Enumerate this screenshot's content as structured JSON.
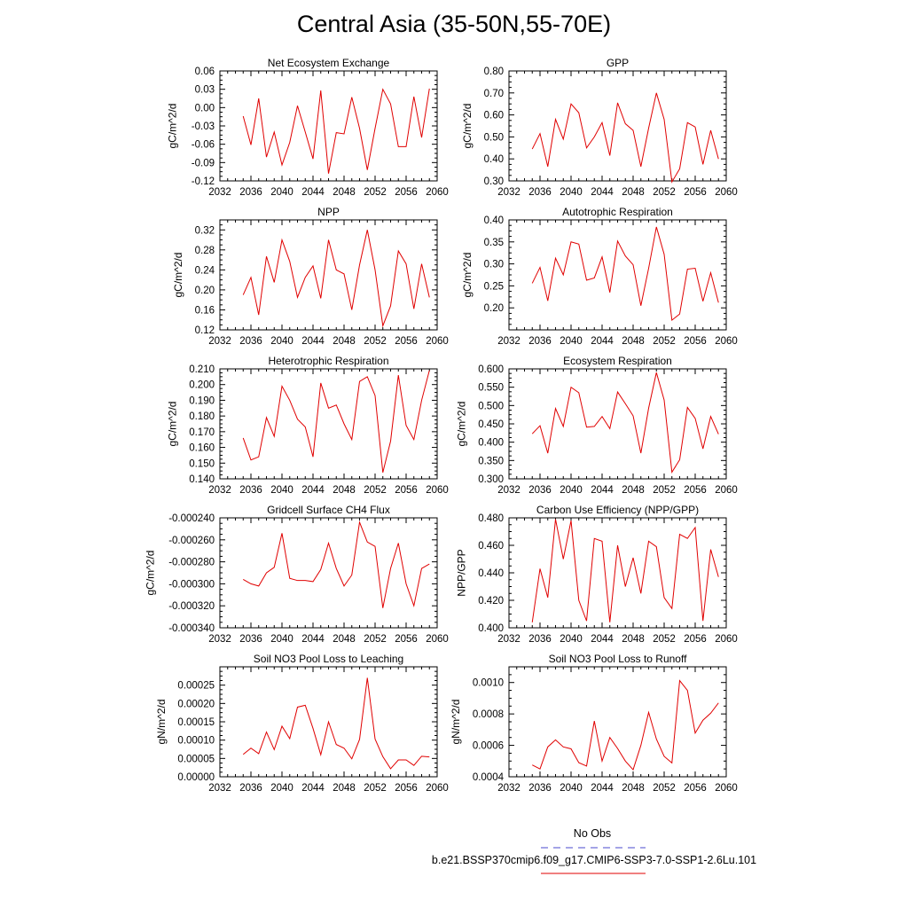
{
  "title": "Central Asia (35-50N,55-70E)",
  "legend": {
    "obs_label": "No Obs",
    "obs_color": "#4a4acd",
    "case_label": "b.e21.BSSP370cmip6.f09_g17.CMIP6-SSP3-7.0-SSP1-2.6Lu.101",
    "case_color": "#e00000"
  },
  "line_color": "#e00000",
  "chart_data": [
    {
      "type": "line",
      "title": "Net Ecosystem Exchange",
      "ylabel": "gC/m^2/d",
      "xlim": [
        2032,
        2060
      ],
      "xticks": [
        2032,
        2036,
        2040,
        2044,
        2048,
        2052,
        2056,
        2060
      ],
      "xtick_labels": [
        "2032",
        "2036",
        "2040",
        "2044",
        "2048",
        "2052",
        "2056",
        "2060"
      ],
      "ylim": [
        -0.12,
        0.06
      ],
      "yticks": [
        -0.12,
        -0.09,
        -0.06,
        -0.03,
        0.0,
        0.03,
        0.06
      ],
      "ytick_labels": [
        "-0.12",
        "-0.09",
        "-0.06",
        "-0.03",
        "0.00",
        "0.03",
        "0.06"
      ],
      "x": [
        2035,
        2036,
        2037,
        2038,
        2039,
        2040,
        2041,
        2042,
        2043,
        2044,
        2045,
        2046,
        2047,
        2048,
        2049,
        2050,
        2051,
        2052,
        2053,
        2054,
        2055,
        2056,
        2057,
        2058,
        2059
      ],
      "values": [
        -0.014,
        -0.061,
        0.015,
        -0.081,
        -0.04,
        -0.094,
        -0.057,
        0.003,
        -0.04,
        -0.084,
        0.028,
        -0.108,
        -0.041,
        -0.043,
        0.017,
        -0.034,
        -0.102,
        -0.034,
        0.03,
        0.006,
        -0.064,
        -0.064,
        0.018,
        -0.049,
        0.031
      ]
    },
    {
      "type": "line",
      "title": "GPP",
      "ylabel": "gC/m^2/d",
      "xlim": [
        2032,
        2060
      ],
      "xticks": [
        2032,
        2036,
        2040,
        2044,
        2048,
        2052,
        2056,
        2060
      ],
      "xtick_labels": [
        "2032",
        "2036",
        "2040",
        "2044",
        "2048",
        "2052",
        "2056",
        "2060"
      ],
      "ylim": [
        0.3,
        0.8
      ],
      "yticks": [
        0.3,
        0.4,
        0.5,
        0.6,
        0.7,
        0.8
      ],
      "ytick_labels": [
        "0.30",
        "0.40",
        "0.50",
        "0.60",
        "0.70",
        "0.80"
      ],
      "x": [
        2035,
        2036,
        2037,
        2038,
        2039,
        2040,
        2041,
        2042,
        2043,
        2044,
        2045,
        2046,
        2047,
        2048,
        2049,
        2050,
        2051,
        2052,
        2053,
        2054,
        2055,
        2056,
        2057,
        2058,
        2059
      ],
      "values": [
        0.445,
        0.515,
        0.365,
        0.58,
        0.49,
        0.65,
        0.61,
        0.45,
        0.5,
        0.565,
        0.415,
        0.655,
        0.56,
        0.53,
        0.365,
        0.54,
        0.7,
        0.58,
        0.295,
        0.355,
        0.565,
        0.545,
        0.375,
        0.53,
        0.4
      ]
    },
    {
      "type": "line",
      "title": "NPP",
      "ylabel": "gC/m^2/d",
      "xlim": [
        2032,
        2060
      ],
      "xticks": [
        2032,
        2036,
        2040,
        2044,
        2048,
        2052,
        2056,
        2060
      ],
      "xtick_labels": [
        "2032",
        "2036",
        "2040",
        "2044",
        "2048",
        "2052",
        "2056",
        "2060"
      ],
      "ylim": [
        0.12,
        0.34
      ],
      "yticks": [
        0.12,
        0.16,
        0.2,
        0.24,
        0.28,
        0.32
      ],
      "ytick_labels": [
        "0.12",
        "0.16",
        "0.20",
        "0.24",
        "0.28",
        "0.32"
      ],
      "x": [
        2035,
        2036,
        2037,
        2038,
        2039,
        2040,
        2041,
        2042,
        2043,
        2044,
        2045,
        2046,
        2047,
        2048,
        2049,
        2050,
        2051,
        2052,
        2053,
        2054,
        2055,
        2056,
        2057,
        2058,
        2059
      ],
      "values": [
        0.19,
        0.225,
        0.15,
        0.267,
        0.215,
        0.3,
        0.257,
        0.185,
        0.225,
        0.248,
        0.183,
        0.3,
        0.24,
        0.232,
        0.16,
        0.25,
        0.32,
        0.24,
        0.128,
        0.168,
        0.278,
        0.252,
        0.162,
        0.252,
        0.185
      ]
    },
    {
      "type": "line",
      "title": "Autotrophic Respiration",
      "ylabel": "gC/m^2/d",
      "xlim": [
        2032,
        2060
      ],
      "xticks": [
        2032,
        2036,
        2040,
        2044,
        2048,
        2052,
        2056,
        2060
      ],
      "xtick_labels": [
        "2032",
        "2036",
        "2040",
        "2044",
        "2048",
        "2052",
        "2056",
        "2060"
      ],
      "ylim": [
        0.15,
        0.4
      ],
      "yticks": [
        0.2,
        0.25,
        0.3,
        0.35,
        0.4
      ],
      "ytick_labels": [
        "0.20",
        "0.25",
        "0.30",
        "0.35",
        "0.40"
      ],
      "x": [
        2035,
        2036,
        2037,
        2038,
        2039,
        2040,
        2041,
        2042,
        2043,
        2044,
        2045,
        2046,
        2047,
        2048,
        2049,
        2050,
        2051,
        2052,
        2053,
        2054,
        2055,
        2056,
        2057,
        2058,
        2059
      ],
      "values": [
        0.256,
        0.292,
        0.216,
        0.313,
        0.275,
        0.35,
        0.345,
        0.263,
        0.268,
        0.316,
        0.235,
        0.352,
        0.318,
        0.298,
        0.205,
        0.29,
        0.384,
        0.322,
        0.172,
        0.186,
        0.288,
        0.29,
        0.215,
        0.28,
        0.212
      ]
    },
    {
      "type": "line",
      "title": "Heterotrophic Respiration",
      "ylabel": "gC/m^2/d",
      "xlim": [
        2032,
        2060
      ],
      "xticks": [
        2032,
        2036,
        2040,
        2044,
        2048,
        2052,
        2056,
        2060
      ],
      "xtick_labels": [
        "2032",
        "2036",
        "2040",
        "2044",
        "2048",
        "2052",
        "2056",
        "2060"
      ],
      "ylim": [
        0.14,
        0.21
      ],
      "yticks": [
        0.14,
        0.15,
        0.16,
        0.17,
        0.18,
        0.19,
        0.2,
        0.21
      ],
      "ytick_labels": [
        "0.140",
        "0.150",
        "0.160",
        "0.170",
        "0.180",
        "0.190",
        "0.200",
        "0.210"
      ],
      "x": [
        2035,
        2036,
        2037,
        2038,
        2039,
        2040,
        2041,
        2042,
        2043,
        2044,
        2045,
        2046,
        2047,
        2048,
        2049,
        2050,
        2051,
        2052,
        2053,
        2054,
        2055,
        2056,
        2057,
        2058,
        2059
      ],
      "values": [
        0.166,
        0.152,
        0.154,
        0.179,
        0.167,
        0.199,
        0.19,
        0.178,
        0.173,
        0.154,
        0.201,
        0.185,
        0.187,
        0.175,
        0.165,
        0.202,
        0.205,
        0.193,
        0.144,
        0.164,
        0.206,
        0.174,
        0.165,
        0.19,
        0.209
      ]
    },
    {
      "type": "line",
      "title": "Ecosystem Respiration",
      "ylabel": "gC/m^2/d",
      "xlim": [
        2032,
        2060
      ],
      "xticks": [
        2032,
        2036,
        2040,
        2044,
        2048,
        2052,
        2056,
        2060
      ],
      "xtick_labels": [
        "2032",
        "2036",
        "2040",
        "2044",
        "2048",
        "2052",
        "2056",
        "2060"
      ],
      "ylim": [
        0.3,
        0.6
      ],
      "yticks": [
        0.3,
        0.35,
        0.4,
        0.45,
        0.5,
        0.55,
        0.6
      ],
      "ytick_labels": [
        "0.300",
        "0.350",
        "0.400",
        "0.450",
        "0.500",
        "0.550",
        "0.600"
      ],
      "x": [
        2035,
        2036,
        2037,
        2038,
        2039,
        2040,
        2041,
        2042,
        2043,
        2044,
        2045,
        2046,
        2047,
        2048,
        2049,
        2050,
        2051,
        2052,
        2053,
        2054,
        2055,
        2056,
        2057,
        2058,
        2059
      ],
      "values": [
        0.423,
        0.445,
        0.37,
        0.492,
        0.443,
        0.55,
        0.535,
        0.441,
        0.443,
        0.47,
        0.437,
        0.537,
        0.505,
        0.472,
        0.37,
        0.493,
        0.59,
        0.515,
        0.318,
        0.352,
        0.495,
        0.465,
        0.382,
        0.47,
        0.422
      ]
    },
    {
      "type": "line",
      "title": "Gridcell Surface CH4 Flux",
      "ylabel": "gC/m^2/d",
      "xlim": [
        2032,
        2060
      ],
      "xticks": [
        2032,
        2036,
        2040,
        2044,
        2048,
        2052,
        2056,
        2060
      ],
      "xtick_labels": [
        "2032",
        "2036",
        "2040",
        "2044",
        "2048",
        "2052",
        "2056",
        "2060"
      ],
      "ylim": [
        -0.00034,
        -0.00024
      ],
      "yticks": [
        -0.00034,
        -0.00032,
        -0.0003,
        -0.00028,
        -0.00026,
        -0.00024
      ],
      "ytick_labels": [
        "-0.000340",
        "-0.000320",
        "-0.000300",
        "-0.000280",
        "-0.000260",
        "-0.000240"
      ],
      "x": [
        2035,
        2036,
        2037,
        2038,
        2039,
        2040,
        2041,
        2042,
        2043,
        2044,
        2045,
        2046,
        2047,
        2048,
        2049,
        2050,
        2051,
        2052,
        2053,
        2054,
        2055,
        2056,
        2057,
        2058,
        2059
      ],
      "values": [
        -0.000296,
        -0.0003,
        -0.000302,
        -0.00029,
        -0.000285,
        -0.000254,
        -0.000295,
        -0.000297,
        -0.000297,
        -0.000298,
        -0.000287,
        -0.000263,
        -0.000286,
        -0.000302,
        -0.000292,
        -0.000244,
        -0.000262,
        -0.000266,
        -0.000322,
        -0.000286,
        -0.000263,
        -0.0003,
        -0.00032,
        -0.000286,
        -0.000282
      ]
    },
    {
      "type": "line",
      "title": "Carbon Use Efficiency (NPP/GPP)",
      "ylabel": "NPP/GPP",
      "xlim": [
        2032,
        2060
      ],
      "xticks": [
        2032,
        2036,
        2040,
        2044,
        2048,
        2052,
        2056,
        2060
      ],
      "xtick_labels": [
        "2032",
        "2036",
        "2040",
        "2044",
        "2048",
        "2052",
        "2056",
        "2060"
      ],
      "ylim": [
        0.4,
        0.48
      ],
      "yticks": [
        0.4,
        0.42,
        0.44,
        0.46,
        0.48
      ],
      "ytick_labels": [
        "0.400",
        "0.420",
        "0.440",
        "0.460",
        "0.480"
      ],
      "x": [
        2035,
        2036,
        2037,
        2038,
        2039,
        2040,
        2041,
        2042,
        2043,
        2044,
        2045,
        2046,
        2047,
        2048,
        2049,
        2050,
        2051,
        2052,
        2053,
        2054,
        2055,
        2056,
        2057,
        2058,
        2059
      ],
      "values": [
        0.404,
        0.443,
        0.422,
        0.479,
        0.45,
        0.478,
        0.42,
        0.405,
        0.465,
        0.463,
        0.404,
        0.46,
        0.43,
        0.451,
        0.425,
        0.463,
        0.459,
        0.422,
        0.414,
        0.468,
        0.465,
        0.473,
        0.405,
        0.457,
        0.437
      ]
    },
    {
      "type": "line",
      "title": "Soil NO3 Pool Loss to Leaching",
      "ylabel": "gN/m^2/d",
      "xlim": [
        2032,
        2060
      ],
      "xticks": [
        2032,
        2036,
        2040,
        2044,
        2048,
        2052,
        2056,
        2060
      ],
      "xtick_labels": [
        "2032",
        "2036",
        "2040",
        "2044",
        "2048",
        "2052",
        "2056",
        "2060"
      ],
      "ylim": [
        0.0,
        0.0003
      ],
      "yticks": [
        0.0,
        5e-05,
        0.0001,
        0.00015,
        0.0002,
        0.00025
      ],
      "ytick_labels": [
        "0.00000",
        "0.00005",
        "0.00010",
        "0.00015",
        "0.00020",
        "0.00025"
      ],
      "x": [
        2035,
        2036,
        2037,
        2038,
        2039,
        2040,
        2041,
        2042,
        2043,
        2044,
        2045,
        2046,
        2047,
        2048,
        2049,
        2050,
        2051,
        2052,
        2053,
        2054,
        2055,
        2056,
        2057,
        2058,
        2059
      ],
      "values": [
        6.1e-05,
        7.8e-05,
        6.3e-05,
        0.000122,
        7.4e-05,
        0.000138,
        0.000104,
        0.00019,
        0.000195,
        0.000132,
        6e-05,
        0.00015,
        8.8e-05,
        7.8e-05,
        4.9e-05,
        0.000102,
        0.00027,
        0.000103,
        5.5e-05,
        2.2e-05,
        4.6e-05,
        4.6e-05,
        3.1e-05,
        5.6e-05,
        5.4e-05
      ]
    },
    {
      "type": "line",
      "title": "Soil NO3 Pool Loss to Runoff",
      "ylabel": "gN/m^2/d",
      "xlim": [
        2032,
        2060
      ],
      "xticks": [
        2032,
        2036,
        2040,
        2044,
        2048,
        2052,
        2056,
        2060
      ],
      "xtick_labels": [
        "2032",
        "2036",
        "2040",
        "2044",
        "2048",
        "2052",
        "2056",
        "2060"
      ],
      "ylim": [
        0.0004,
        0.0011
      ],
      "yticks": [
        0.0004,
        0.0006,
        0.0008,
        0.001
      ],
      "ytick_labels": [
        "0.0004",
        "0.0006",
        "0.0008",
        "0.0010"
      ],
      "x": [
        2035,
        2036,
        2037,
        2038,
        2039,
        2040,
        2041,
        2042,
        2043,
        2044,
        2045,
        2046,
        2047,
        2048,
        2049,
        2050,
        2051,
        2052,
        2053,
        2054,
        2055,
        2056,
        2057,
        2058,
        2059
      ],
      "values": [
        0.000475,
        0.00045,
        0.00059,
        0.000635,
        0.00059,
        0.000578,
        0.00049,
        0.000468,
        0.000755,
        0.0005,
        0.00065,
        0.00058,
        0.0005,
        0.000445,
        0.0006,
        0.00081,
        0.00064,
        0.00053,
        0.000488,
        0.001012,
        0.00095,
        0.000678,
        0.00076,
        0.000805,
        0.00087
      ]
    }
  ]
}
